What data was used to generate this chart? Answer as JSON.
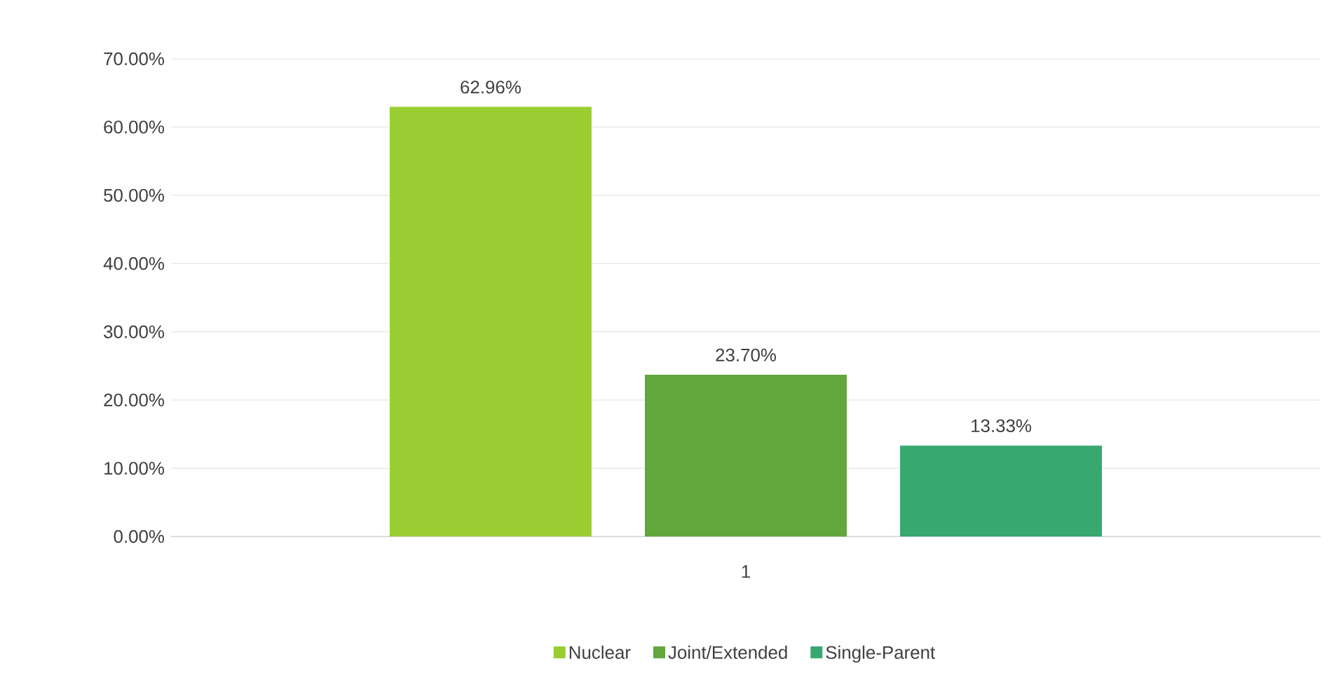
{
  "chart_data": {
    "type": "bar",
    "categories": [
      "1"
    ],
    "series": [
      {
        "name": "Nuclear",
        "color": "#9acd32",
        "values": [
          62.96
        ],
        "value_labels": [
          "62.96%"
        ]
      },
      {
        "name": "Joint/Extended",
        "color": "#62a73b",
        "values": [
          23.7
        ],
        "value_labels": [
          "23.70%"
        ]
      },
      {
        "name": "Single-Parent",
        "color": "#37a870",
        "values": [
          13.33
        ],
        "value_labels": [
          "13.33%"
        ]
      }
    ],
    "ylim": [
      0,
      70
    ],
    "yticks": [
      {
        "value": 0,
        "label": "0.00%"
      },
      {
        "value": 10,
        "label": "10.00%"
      },
      {
        "value": 20,
        "label": "20.00%"
      },
      {
        "value": 30,
        "label": "30.00%"
      },
      {
        "value": 40,
        "label": "40.00%"
      },
      {
        "value": 50,
        "label": "50.00%"
      },
      {
        "value": 60,
        "label": "60.00%"
      },
      {
        "value": 70,
        "label": "70.00%"
      }
    ],
    "grid": "y",
    "legend": "bottom"
  }
}
